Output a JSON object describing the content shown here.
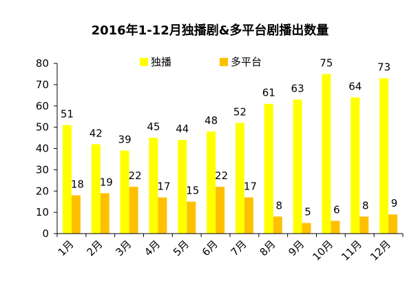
{
  "chart_data": {
    "type": "bar",
    "title": "2016年1-12月独播剧&多平台剧播出数量",
    "categories": [
      "1月",
      "2月",
      "3月",
      "4月",
      "5月",
      "6月",
      "7月",
      "8月",
      "9月",
      "10月",
      "11月",
      "12月"
    ],
    "series": [
      {
        "name": "独播",
        "color": "#FFFF00",
        "values": [
          51,
          42,
          39,
          45,
          44,
          48,
          52,
          61,
          63,
          75,
          64,
          73
        ]
      },
      {
        "name": "多平台",
        "color": "#FFC000",
        "values": [
          18,
          19,
          22,
          17,
          15,
          22,
          17,
          8,
          5,
          6,
          8,
          9
        ]
      }
    ],
    "ylim": [
      0,
      80
    ],
    "yticks": [
      0,
      10,
      20,
      30,
      40,
      50,
      60,
      70,
      80
    ],
    "grid": false,
    "legend": "top-center"
  }
}
